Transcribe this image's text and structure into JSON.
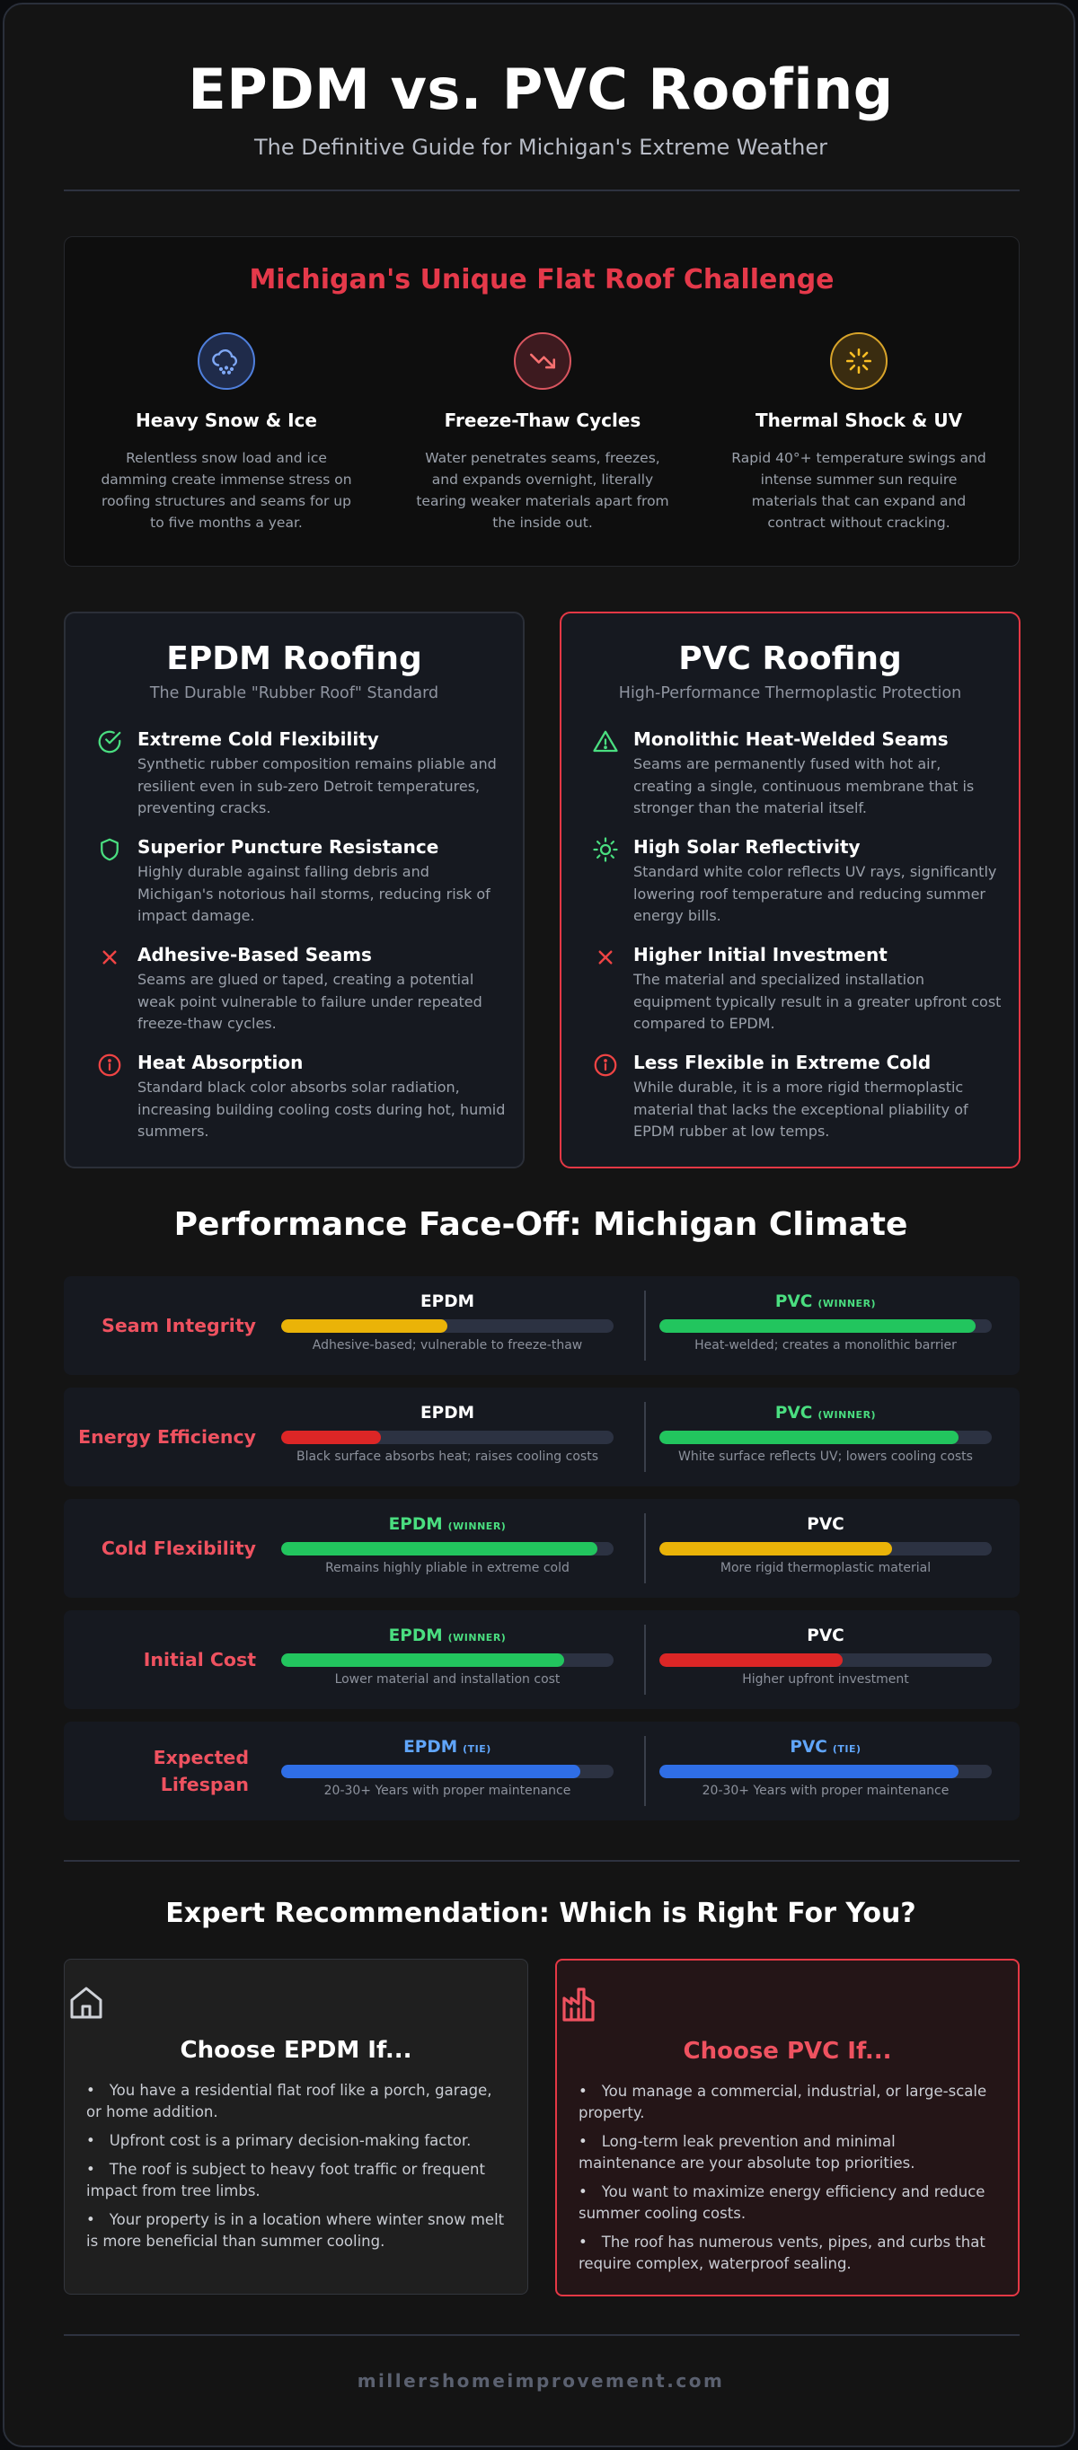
{
  "header": {
    "title": "EPDM vs. PVC Roofing",
    "subtitle": "The Definitive Guide for Michigan's Extreme Weather"
  },
  "challenge": {
    "title": "Michigan's Unique Flat Roof Challenge",
    "items": [
      {
        "icon": "snow-cloud-icon",
        "color": "#60a5fa",
        "title": "Heavy Snow & Ice",
        "text": "Relentless snow load and ice damming create immense stress on roofing structures and seams for up to five months a year."
      },
      {
        "icon": "trending-down-icon",
        "color": "#f87171",
        "title": "Freeze-Thaw Cycles",
        "text": "Water penetrates seams, freezes, and expands overnight, literally tearing weaker materials apart from the inside out."
      },
      {
        "icon": "sun-burst-icon",
        "color": "#fbbf24",
        "title": "Thermal Shock & UV",
        "text": "Rapid 40°+ temperature swings and intense summer sun require materials that can expand and contract without cracking."
      }
    ]
  },
  "epdm": {
    "title": "EPDM Roofing",
    "subtitle": "The Durable \"Rubber Roof\" Standard",
    "features": [
      {
        "icon": "check-circle-icon",
        "kind": "pro",
        "title": "Extreme Cold Flexibility",
        "text": "Synthetic rubber composition remains pliable and resilient even in sub-zero Detroit temperatures, preventing cracks."
      },
      {
        "icon": "shield-icon",
        "kind": "pro",
        "title": "Superior Puncture Resistance",
        "text": "Highly durable against falling debris and Michigan's notorious hail storms, reducing risk of impact damage."
      },
      {
        "icon": "x-icon",
        "kind": "con",
        "title": "Adhesive-Based Seams",
        "text": "Seams are glued or taped, creating a potential weak point vulnerable to failure under repeated freeze-thaw cycles."
      },
      {
        "icon": "info-circle-icon",
        "kind": "con",
        "title": "Heat Absorption",
        "text": "Standard black color absorbs solar radiation, increasing building cooling costs during hot, humid summers."
      }
    ]
  },
  "pvc": {
    "title": "PVC Roofing",
    "subtitle": "High-Performance Thermoplastic Protection",
    "features": [
      {
        "icon": "warning-triangle-icon",
        "kind": "pro",
        "title": "Monolithic Heat-Welded Seams",
        "text": "Seams are permanently fused with hot air, creating a single, continuous membrane that is stronger than the material itself."
      },
      {
        "icon": "sun-icon",
        "kind": "pro",
        "title": "High Solar Reflectivity",
        "text": "Standard white color reflects UV rays, significantly lowering roof temperature and reducing summer energy bills."
      },
      {
        "icon": "x-icon",
        "kind": "con",
        "title": "Higher Initial Investment",
        "text": "The material and specialized installation equipment typically result in a greater upfront cost compared to EPDM."
      },
      {
        "icon": "info-circle-icon",
        "kind": "con",
        "title": "Less Flexible in Extreme Cold",
        "text": "While durable, it is a more rigid thermoplastic material that lacks the exceptional pliability of EPDM rubber at low temps."
      }
    ]
  },
  "performance": {
    "title": "Performance Face-Off: Michigan Climate",
    "rows": [
      {
        "label": "Seam Integrity",
        "left": {
          "name": "EPDM",
          "badge": "",
          "status": "",
          "level": 0.5,
          "color": "#eab308",
          "note": "Adhesive-based; vulnerable to freeze-thaw"
        },
        "right": {
          "name": "PVC",
          "badge": "(WINNER)",
          "status": "win",
          "level": 0.95,
          "color": "#22c55e",
          "note": "Heat-welded; creates a monolithic barrier"
        }
      },
      {
        "label": "Energy Efficiency",
        "left": {
          "name": "EPDM",
          "badge": "",
          "status": "",
          "level": 0.3,
          "color": "#dc2626",
          "note": "Black surface absorbs heat; raises cooling costs"
        },
        "right": {
          "name": "PVC",
          "badge": "(WINNER)",
          "status": "win",
          "level": 0.9,
          "color": "#22c55e",
          "note": "White surface reflects UV; lowers cooling costs"
        }
      },
      {
        "label": "Cold Flexibility",
        "left": {
          "name": "EPDM",
          "badge": "(WINNER)",
          "status": "win",
          "level": 0.95,
          "color": "#22c55e",
          "note": "Remains highly pliable in extreme cold"
        },
        "right": {
          "name": "PVC",
          "badge": "",
          "status": "",
          "level": 0.7,
          "color": "#eab308",
          "note": "More rigid thermoplastic material"
        }
      },
      {
        "label": "Initial Cost",
        "left": {
          "name": "EPDM",
          "badge": "(WINNER)",
          "status": "win",
          "level": 0.85,
          "color": "#22c55e",
          "note": "Lower material and installation cost"
        },
        "right": {
          "name": "PVC",
          "badge": "",
          "status": "",
          "level": 0.55,
          "color": "#dc2626",
          "note": "Higher upfront investment"
        }
      },
      {
        "label": "Expected Lifespan",
        "left": {
          "name": "EPDM",
          "badge": "(TIE)",
          "status": "tie",
          "level": 0.9,
          "color": "#2f6ee6",
          "note": "20-30+ Years with proper maintenance"
        },
        "right": {
          "name": "PVC",
          "badge": "(TIE)",
          "status": "tie",
          "level": 0.9,
          "color": "#2f6ee6",
          "note": "20-30+ Years with proper maintenance"
        }
      }
    ]
  },
  "recommendation": {
    "title": "Expert Recommendation: Which is Right For You?",
    "epdm": {
      "icon": "house-icon",
      "title": "Choose EPDM If...",
      "items": [
        "You have a residential flat roof like a porch, garage, or home addition.",
        "Upfront cost is a primary decision-making factor.",
        "The roof is subject to heavy foot traffic or frequent impact from tree limbs.",
        "Your property is in a location where winter snow melt is more beneficial than summer cooling."
      ]
    },
    "pvc": {
      "icon": "factory-icon",
      "title": "Choose PVC If...",
      "items": [
        "You manage a commercial, industrial, or large-scale property.",
        "Long-term leak prevention and minimal maintenance are your absolute top priorities.",
        "You want to maximize energy efficiency and reduce summer cooling costs.",
        "The roof has numerous vents, pipes, and curbs that require complex, waterproof sealing."
      ]
    }
  },
  "footer": {
    "site": "millershomeimprovement.com"
  },
  "colors": {
    "accent_red": "#e53845",
    "pro_green": "#4ade80",
    "con_red": "#ef4444"
  }
}
